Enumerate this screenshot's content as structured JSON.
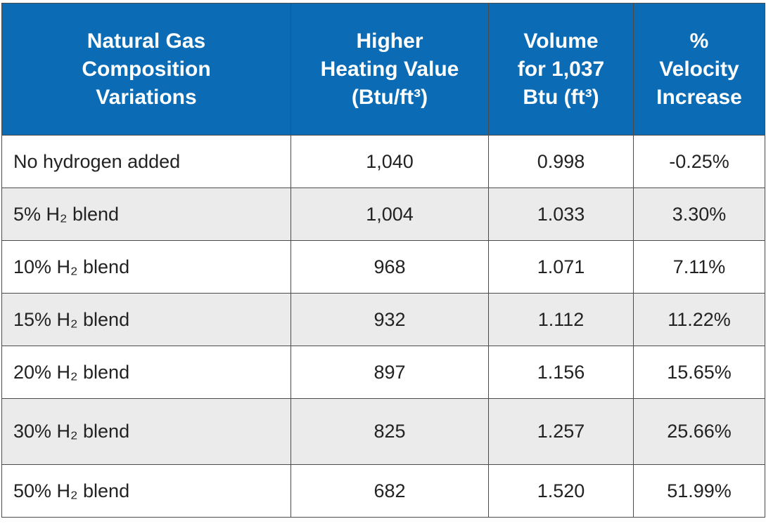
{
  "table": {
    "header": [
      [
        "Natural Gas",
        "Composition",
        "Variations"
      ],
      [
        "Higher",
        "Heating Value",
        "(Btu/ft³)"
      ],
      [
        "Volume",
        "for 1,037",
        "Btu (ft³)"
      ],
      [
        "%",
        "Velocity",
        "Increase"
      ]
    ],
    "rows": [
      [
        "No hydrogen added",
        "1,040",
        "0.998",
        "-0.25%"
      ],
      [
        "5% H₂ blend",
        "1,004",
        "1.033",
        "3.30%"
      ],
      [
        "10% H₂ blend",
        "968",
        "1.071",
        "7.11%"
      ],
      [
        "15% H₂ blend",
        "932",
        "1.112",
        "11.22%"
      ],
      [
        "20% H₂ blend",
        "897",
        "1.156",
        "15.65%"
      ],
      [
        "30% H₂ blend",
        "825",
        "1.257",
        "25.66%"
      ],
      [
        "50% H₂ blend",
        "682",
        "1.520",
        "51.99%"
      ]
    ]
  }
}
